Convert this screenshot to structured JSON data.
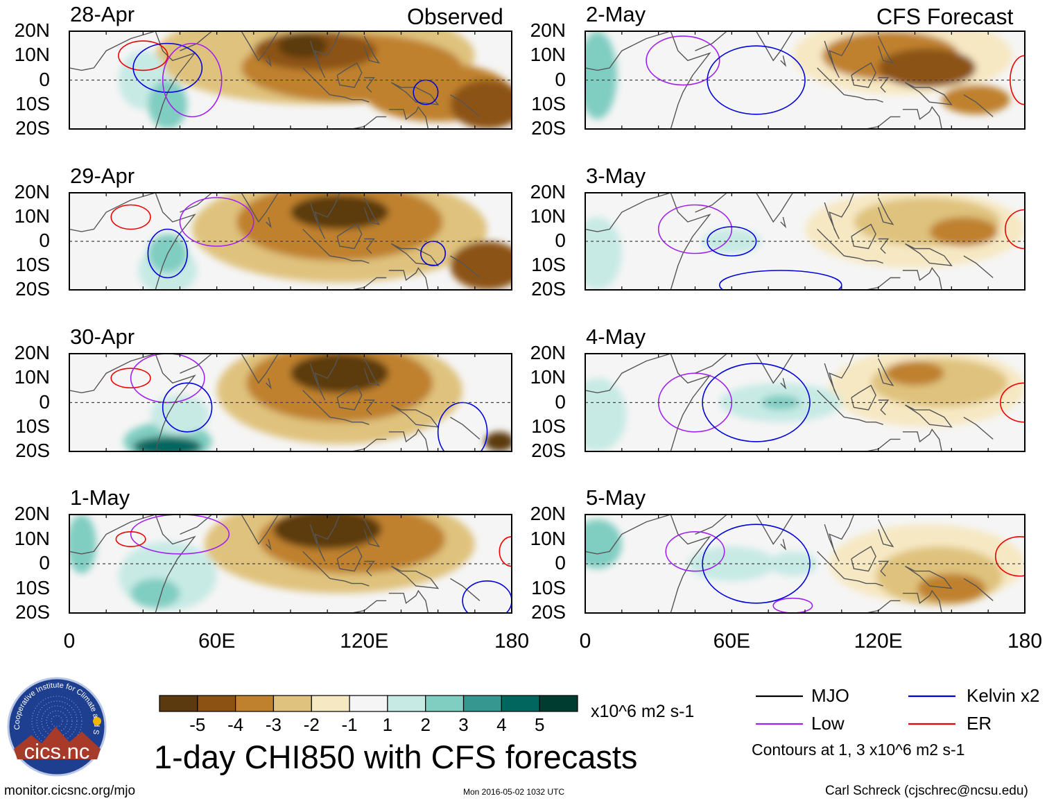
{
  "chart_data": {
    "type": "heatmap",
    "title": "1-day CHI850 with CFS forecasts",
    "columns": [
      {
        "header": "Observed",
        "panels": [
          "28-Apr",
          "29-Apr",
          "30-Apr",
          "1-May"
        ]
      },
      {
        "header": "CFS Forecast",
        "panels": [
          "2-May",
          "3-May",
          "4-May",
          "5-May"
        ]
      }
    ],
    "y_ticks": [
      "20N",
      "10N",
      "0",
      "10S",
      "20S"
    ],
    "x_ticks": [
      "0",
      "60E",
      "120E",
      "180"
    ],
    "xlim": [
      0,
      180
    ],
    "ylim": [
      -20,
      20
    ],
    "colorbar": {
      "ticks": [
        "-5",
        "-4",
        "-3",
        "-2",
        "-1",
        "1",
        "2",
        "3",
        "4",
        "5"
      ],
      "units": "x10^6 m2 s-1",
      "colors": [
        "#5b3a0f",
        "#8c5214",
        "#bf812d",
        "#dfc27d",
        "#f6e8c3",
        "#f5f5f5",
        "#c7eae5",
        "#80cdc1",
        "#35978f",
        "#01665e",
        "#003c30"
      ]
    },
    "legend": [
      {
        "label": "MJO",
        "color": "#000000"
      },
      {
        "label": "Kelvin x2",
        "color": "#0000dd"
      },
      {
        "label": "Low",
        "color": "#a020f0"
      },
      {
        "label": "ER",
        "color": "#ee0000"
      }
    ],
    "contour_note": "Contours at 1, 3 x10^6 m2 s-1"
  },
  "logo_text": "cics.nc",
  "logo_ring_text": "Cooperative Institute for Climate and Satellites",
  "footer": {
    "left": "monitor.cicsnc.org/mjo",
    "center": "Mon 2016-05-02 1032 UTC",
    "right": "Carl Schreck (cjschrec@ncsu.edu)"
  }
}
